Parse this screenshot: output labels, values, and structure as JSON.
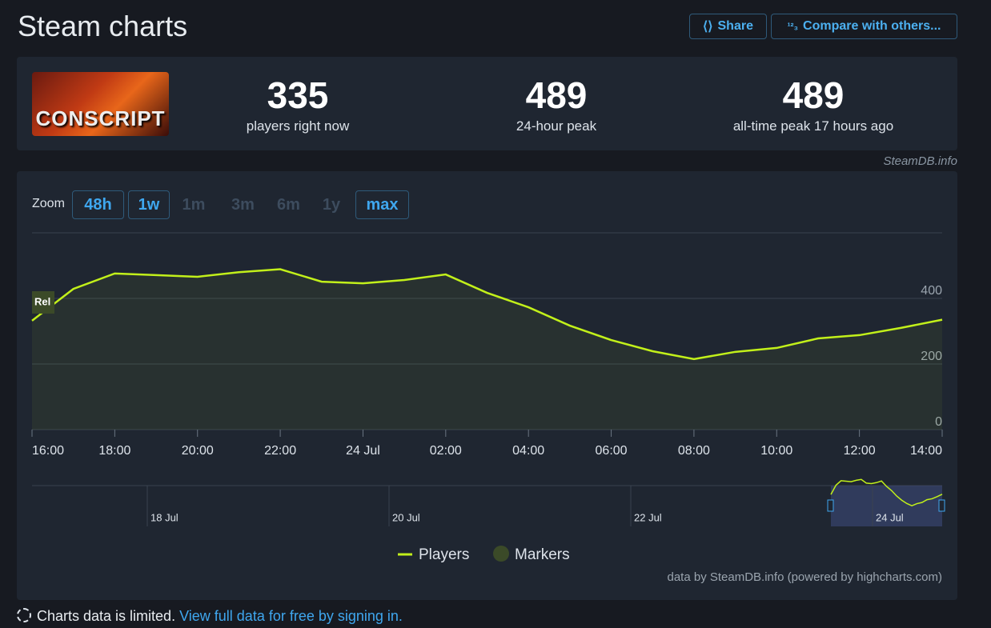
{
  "header": {
    "title": "Steam charts",
    "share": "Share",
    "compare": "Compare with others..."
  },
  "game": {
    "image_text": "CONSCRIPT"
  },
  "stats": [
    {
      "value": 335,
      "label": "players right now"
    },
    {
      "value": 489,
      "label": "24-hour peak"
    },
    {
      "value": 489,
      "label": "all-time peak 17 hours ago"
    }
  ],
  "source": "SteamDB.info",
  "zoom": {
    "label": "Zoom",
    "options": [
      "48h",
      "1w",
      "1m",
      "3m",
      "6m",
      "1y",
      "max"
    ],
    "active": [
      true,
      true,
      false,
      false,
      false,
      false,
      true
    ]
  },
  "chart_data": {
    "type": "line",
    "categories": [
      "16:00",
      null,
      "18:00",
      null,
      "20:00",
      null,
      "22:00",
      null,
      "24 Jul",
      null,
      "02:00",
      null,
      "04:00",
      null,
      "06:00",
      null,
      "08:00",
      null,
      "10:00",
      null,
      "12:00",
      null,
      "14:00"
    ],
    "series": [
      {
        "name": "Players",
        "color": "#c2f01a",
        "values": [
          332,
          429,
          476,
          471,
          466,
          480,
          489,
          451,
          446,
          456,
          473,
          417,
          373,
          317,
          273,
          239,
          215,
          237,
          249,
          278,
          288,
          310,
          335
        ]
      }
    ],
    "markers": {
      "name": "Markers",
      "color": "#3b4a28",
      "items": [
        {
          "label": "Rel",
          "category": "16:00"
        }
      ]
    },
    "ylim": [
      0,
      600
    ],
    "yticks": [
      0,
      200,
      400
    ],
    "grid": true,
    "navigator": {
      "labels": [
        "18 Jul",
        "20 Jul",
        "22 Jul",
        "24 Jul"
      ]
    },
    "credits": "data by SteamDB.info (powered by highcharts.com)"
  },
  "footer": {
    "notice": "Charts data is limited.",
    "link": "View full data for free by signing in."
  }
}
